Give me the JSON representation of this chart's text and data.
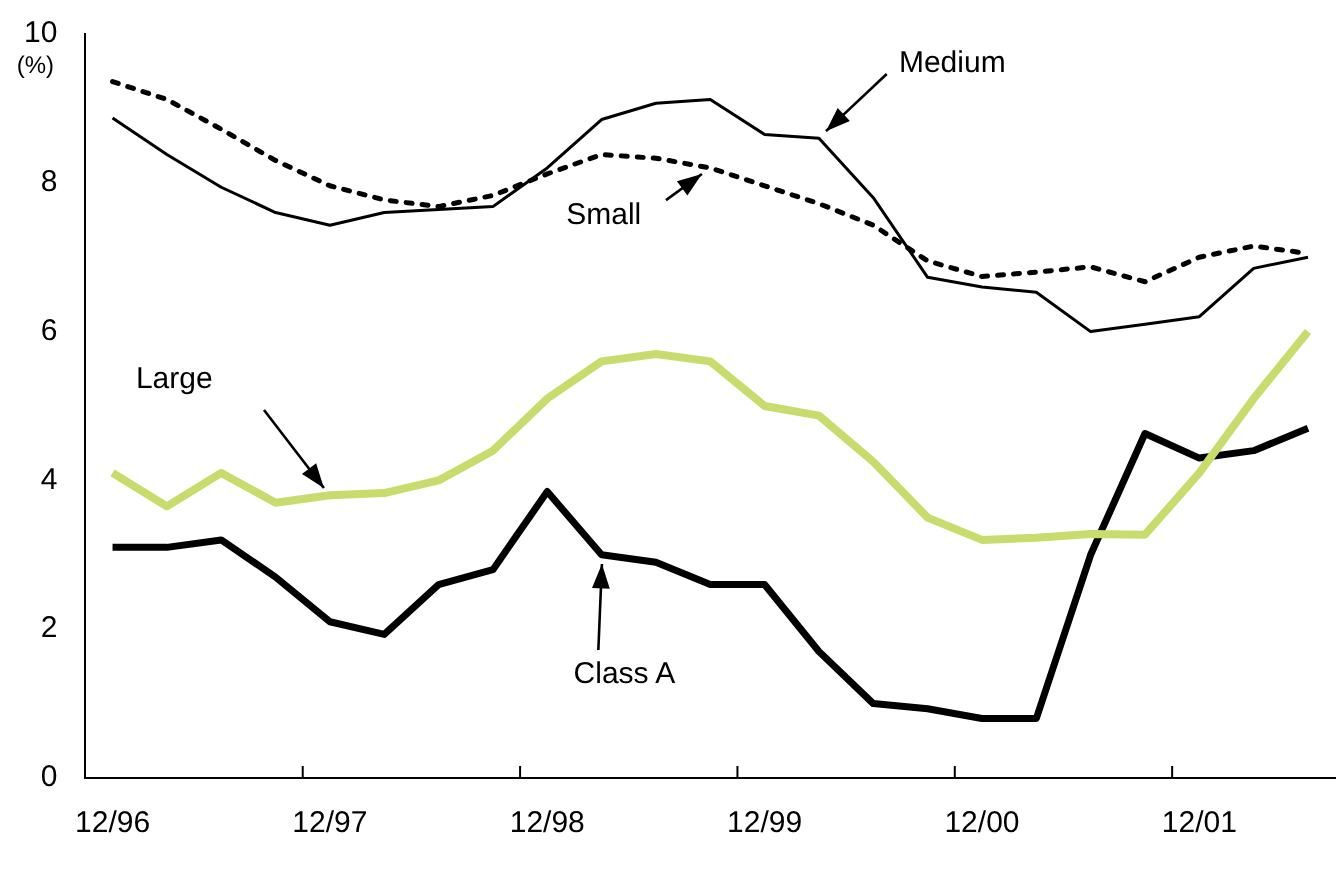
{
  "chart_data": {
    "type": "line",
    "ylabel": "(%)",
    "categories": [
      "12/96",
      null,
      null,
      null,
      "12/97",
      null,
      null,
      null,
      "12/98",
      null,
      null,
      null,
      "12/99",
      null,
      null,
      null,
      "12/00",
      null,
      null,
      null,
      "12/01",
      null,
      null
    ],
    "series": [
      {
        "name": "Medium",
        "color": "#000000",
        "line_style": "solid",
        "values": [
          8.87,
          8.38,
          7.94,
          7.6,
          7.43,
          7.6,
          7.64,
          7.68,
          8.2,
          8.85,
          9.07,
          9.12,
          8.65,
          8.6,
          7.8,
          6.73,
          6.6,
          6.53,
          6.0,
          6.1,
          6.2,
          6.85,
          7.0
        ]
      },
      {
        "name": "Small",
        "color": "#000000",
        "line_style": "dotted",
        "values": [
          9.36,
          9.12,
          8.72,
          8.3,
          7.96,
          7.77,
          7.68,
          7.83,
          8.12,
          8.38,
          8.33,
          8.2,
          7.96,
          7.72,
          7.43,
          6.95,
          6.74,
          6.8,
          6.87,
          6.67,
          7.0,
          7.15,
          7.05
        ]
      },
      {
        "name": "Large",
        "color": "#c8dc6e",
        "line_style": "solid",
        "values": [
          4.1,
          3.65,
          4.1,
          3.7,
          3.8,
          3.83,
          4.0,
          4.4,
          5.1,
          5.6,
          5.7,
          5.6,
          5.0,
          4.87,
          4.25,
          3.5,
          3.2,
          3.23,
          3.28,
          3.27,
          4.1,
          5.1,
          6.0
        ]
      },
      {
        "name": "Class A",
        "color": "#000000",
        "line_style": "solid",
        "values": [
          3.1,
          3.1,
          3.2,
          2.7,
          2.1,
          1.93,
          2.6,
          2.8,
          3.85,
          3.0,
          2.9,
          2.6,
          2.6,
          1.7,
          1.0,
          0.93,
          0.8,
          0.8,
          3.0,
          4.63,
          4.3,
          4.4,
          4.7
        ]
      }
    ],
    "ylim": [
      0,
      10
    ],
    "yticks": [
      0,
      2,
      4,
      6,
      8,
      10
    ],
    "grid": false,
    "legend": false,
    "marker": "none"
  }
}
